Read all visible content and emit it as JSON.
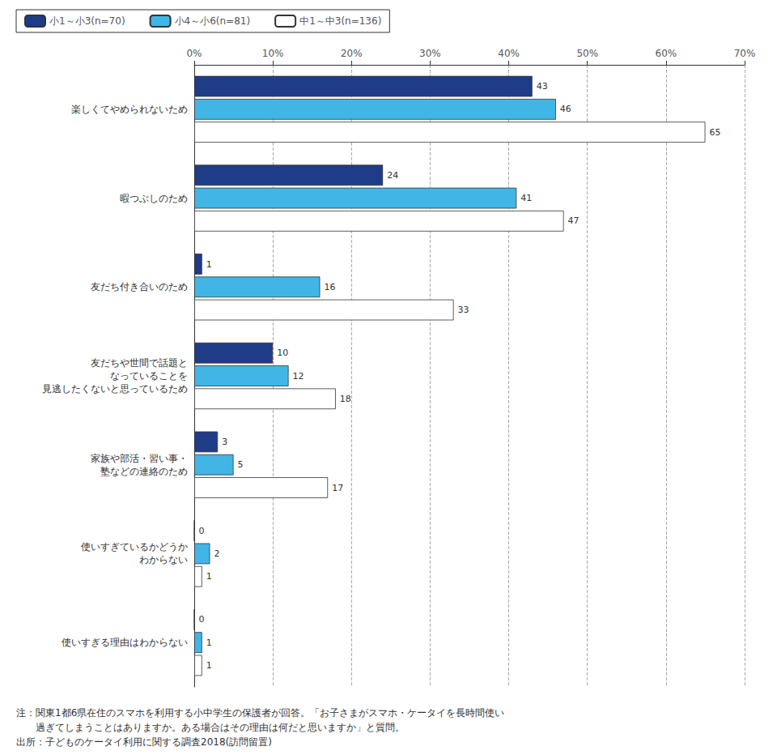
{
  "chart_data": {
    "type": "bar",
    "orientation": "horizontal",
    "categories": [
      "楽しくてやめられないため",
      "暇つぶしのため",
      "友だち付き合いのため",
      "友だちや世間で話題と\nなっていることを\n見逃したくないと思っているため",
      "家族や部活・習い事・\n塾などの連絡のため",
      "使いすぎているかどうか\nわからない",
      "使いすぎる理由はわからない"
    ],
    "series": [
      {
        "name": "小1～小3(n=70)",
        "color": "#1f3c88",
        "values": [
          43,
          24,
          1,
          10,
          3,
          0,
          0
        ]
      },
      {
        "name": "小4～小6(n=81)",
        "color": "#41b6e6",
        "values": [
          46,
          41,
          16,
          12,
          5,
          2,
          1
        ]
      },
      {
        "name": "中1～中3(n=136)",
        "color": "#ffffff",
        "values": [
          65,
          47,
          33,
          18,
          17,
          1,
          1
        ]
      }
    ],
    "xlim": [
      0,
      70
    ],
    "xticks": [
      {
        "value": 0,
        "label": "0%"
      },
      {
        "value": 10,
        "label": "10%"
      },
      {
        "value": 20,
        "label": "20%"
      },
      {
        "value": 30,
        "label": "30%"
      },
      {
        "value": 40,
        "label": "40%"
      },
      {
        "value": 50,
        "label": "50%"
      },
      {
        "value": 60,
        "label": "60%"
      },
      {
        "value": 70,
        "label": "70%"
      }
    ],
    "grid": true,
    "legend": "upper left",
    "data_labels": true,
    "annotations": [
      "注：関東1都6県在住のスマホを利用する小中学生の保護者が回答。「お子さまがスマホ・ケータイを長時間使い",
      "　　過ぎてしまうことはありますか。ある場合はその理由は何だと思いますか」と質問。",
      "出所：子どものケータイ利用に関する調査2018(訪問留置)"
    ]
  }
}
